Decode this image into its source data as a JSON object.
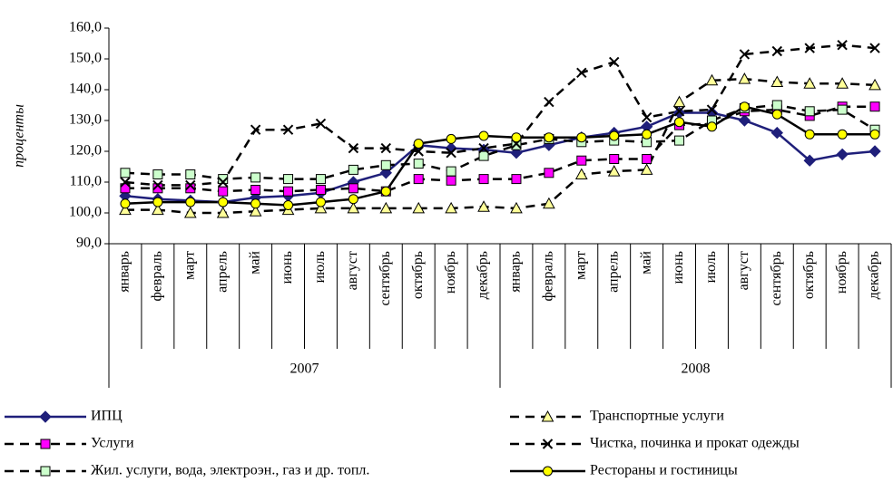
{
  "chart_data": {
    "type": "line",
    "y_label": "проценты",
    "categories": [
      "январь",
      "февраль",
      "март",
      "апрель",
      "май",
      "июнь",
      "июль",
      "август",
      "сентябрь",
      "октябрь",
      "ноябрь",
      "декабрь",
      "январь",
      "февраль",
      "март",
      "апрель",
      "май",
      "июнь",
      "июль",
      "август",
      "сентябрь",
      "октябрь",
      "ноябрь",
      "декабрь"
    ],
    "years": [
      "2007",
      "2008"
    ],
    "ylim": [
      90,
      160
    ],
    "yticks": [
      {
        "value": 90,
        "label": "90,0"
      },
      {
        "value": 100,
        "label": "100,0"
      },
      {
        "value": 110,
        "label": "110,0"
      },
      {
        "value": 120,
        "label": "120,0"
      },
      {
        "value": 130,
        "label": "130,0"
      },
      {
        "value": 140,
        "label": "140,0"
      },
      {
        "value": 150,
        "label": "150,0"
      },
      {
        "value": 160,
        "label": "160,0"
      }
    ],
    "grid": false,
    "legend": "bottom",
    "series": [
      {
        "name": "ИПЦ",
        "color": "#1f1f7a",
        "marker": "diamond",
        "marker_color": "#1f1f7a",
        "line_style": "solid",
        "values": [
          105.5,
          104.5,
          104,
          103.5,
          105,
          105.5,
          106.5,
          110,
          113,
          122,
          121,
          120.5,
          119.5,
          122,
          124.5,
          126,
          128,
          132.5,
          132.5,
          130,
          126,
          117,
          119,
          120
        ]
      },
      {
        "name": "Услуги",
        "color": "#000000",
        "marker": "square",
        "marker_color": "#ff00ff",
        "line_style": "dashed",
        "values": [
          108,
          108,
          108,
          107,
          107.5,
          107,
          107.5,
          108,
          107,
          111,
          110.5,
          111,
          111,
          113,
          117,
          117.5,
          117.5,
          128.5,
          129,
          133,
          133.5,
          131.5,
          134.5,
          134.5
        ]
      },
      {
        "name": "Жил. услуги, вода, электроэн., газ и др. топл.",
        "color": "#000000",
        "marker": "square",
        "marker_color": "#ccffcc",
        "line_style": "dashed",
        "values": [
          113,
          112.5,
          112.5,
          111,
          111.5,
          111,
          111,
          114,
          115.5,
          116,
          113.5,
          118.5,
          122,
          124,
          123,
          123.5,
          123,
          123.5,
          130,
          134,
          135,
          133,
          133.5,
          127
        ]
      },
      {
        "name": "Транспортные услуги",
        "color": "#000000",
        "marker": "triangle",
        "marker_color": "#ffff99",
        "line_style": "dashed",
        "values": [
          101,
          101,
          100,
          100,
          100.5,
          101,
          101.5,
          101.5,
          101.5,
          101.5,
          101.5,
          102,
          101.5,
          103,
          112.5,
          113.5,
          114,
          136,
          143,
          143.5,
          142.5,
          142,
          142,
          141.5
        ]
      },
      {
        "name": "Чистка, починка и прокат одежды",
        "color": "#000000",
        "marker": "x",
        "marker_color": "#000000",
        "line_style": "dashed",
        "values": [
          110,
          109,
          109,
          110,
          127,
          127,
          129,
          121,
          121,
          120,
          119.5,
          121,
          122.5,
          136,
          145.5,
          149,
          131,
          133,
          133.5,
          151.5,
          152.5,
          153.5,
          154.5,
          153.5
        ]
      },
      {
        "name": "Рестораны и гостиницы",
        "color": "#000000",
        "marker": "circle",
        "marker_color": "#ffff00",
        "line_style": "solid",
        "values": [
          103,
          103.5,
          103.5,
          103.5,
          103,
          102.5,
          103.5,
          104.5,
          107,
          122.5,
          124,
          125,
          124.5,
          124.5,
          124.5,
          125,
          125.5,
          129.5,
          128,
          134.5,
          132,
          125.5,
          125.5,
          125.5
        ]
      }
    ]
  }
}
